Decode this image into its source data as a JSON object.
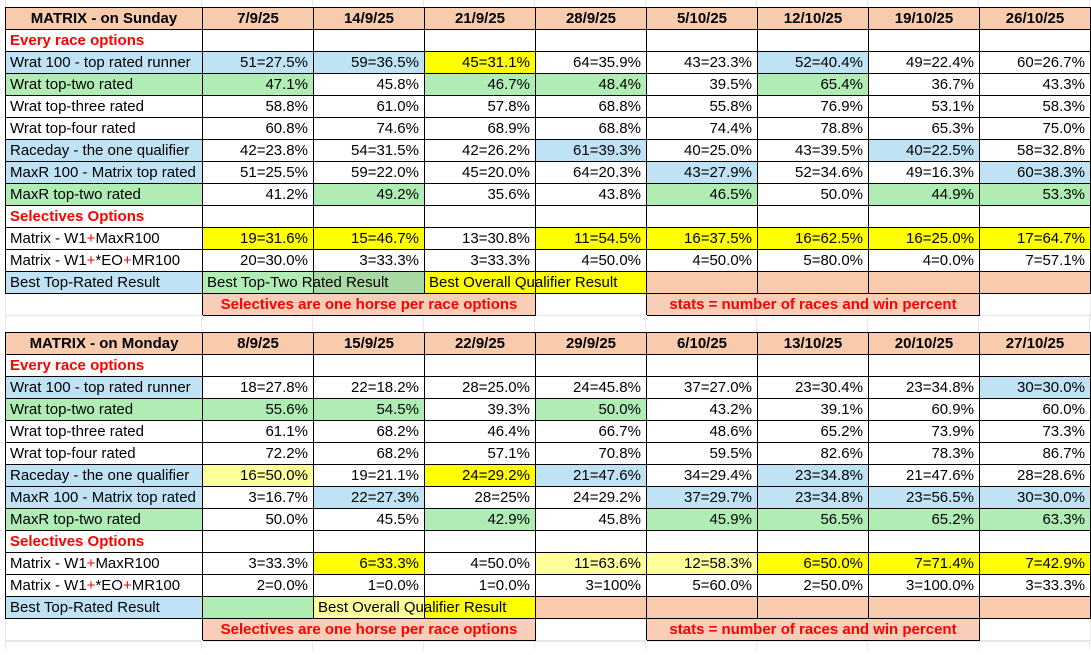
{
  "colors": {
    "peach": "#F8CBAD",
    "banner": "#F9CEB8",
    "blue": "#BFE3F4",
    "green": "#AFEDB5",
    "green_dark": "#A9D9A3",
    "yellow": "#FFFF00",
    "pale_yellow": "#FFFF9C",
    "white": "#FFFFFF",
    "red": "#FF0000",
    "grid": "#E8E8E8"
  },
  "tables": [
    {
      "name": "sunday-results-table",
      "title": "MATRIX - on Sunday",
      "dates": [
        "7/9/25",
        "14/9/25",
        "21/9/25",
        "28/9/25",
        "5/10/25",
        "12/10/25",
        "19/10/25",
        "26/10/25"
      ],
      "rows": [
        {
          "t": "section",
          "label": "Every race options"
        },
        {
          "t": "row",
          "label": "Wrat 100 - top rated runner",
          "lf": "blue",
          "cells": [
            [
              "51=27.5%",
              "blue"
            ],
            [
              "59=36.5%",
              "blue"
            ],
            [
              "45=31.1%",
              "yellow"
            ],
            [
              "64=35.9%",
              "white"
            ],
            [
              "43=23.3%",
              "white"
            ],
            [
              "52=40.4%",
              "blue"
            ],
            [
              "49=22.4%",
              "white"
            ],
            [
              "60=26.7%",
              "white"
            ]
          ]
        },
        {
          "t": "row",
          "label": "Wrat top-two rated",
          "lf": "green",
          "cells": [
            [
              "47.1%",
              "green"
            ],
            [
              "45.8%",
              "white"
            ],
            [
              "46.7%",
              "green"
            ],
            [
              "48.4%",
              "green"
            ],
            [
              "39.5%",
              "white"
            ],
            [
              "65.4%",
              "green"
            ],
            [
              "36.7%",
              "white"
            ],
            [
              "43.3%",
              "white"
            ]
          ]
        },
        {
          "t": "row",
          "label": "Wrat top-three rated",
          "lf": "white",
          "cells": [
            [
              "58.8%",
              "white"
            ],
            [
              "61.0%",
              "white"
            ],
            [
              "57.8%",
              "white"
            ],
            [
              "68.8%",
              "white"
            ],
            [
              "55.8%",
              "white"
            ],
            [
              "76.9%",
              "white"
            ],
            [
              "53.1%",
              "white"
            ],
            [
              "58.3%",
              "white"
            ]
          ]
        },
        {
          "t": "row",
          "label": "Wrat top-four rated",
          "lf": "white",
          "cells": [
            [
              "60.8%",
              "white"
            ],
            [
              "74.6%",
              "white"
            ],
            [
              "68.9%",
              "white"
            ],
            [
              "68.8%",
              "white"
            ],
            [
              "74.4%",
              "white"
            ],
            [
              "78.8%",
              "white"
            ],
            [
              "65.3%",
              "white"
            ],
            [
              "75.0%",
              "white"
            ]
          ]
        },
        {
          "t": "row",
          "label": "Raceday - the one qualifier",
          "lf": "blue",
          "cells": [
            [
              "42=23.8%",
              "white"
            ],
            [
              "54=31.5%",
              "white"
            ],
            [
              "42=26.2%",
              "white"
            ],
            [
              "61=39.3%",
              "blue"
            ],
            [
              "40=25.0%",
              "white"
            ],
            [
              "43=39.5%",
              "white"
            ],
            [
              "40=22.5%",
              "blue"
            ],
            [
              "58=32.8%",
              "white"
            ]
          ]
        },
        {
          "t": "row",
          "label": "MaxR 100 - Matrix top rated",
          "lf": "blue",
          "cells": [
            [
              "51=25.5%",
              "white"
            ],
            [
              "59=22.0%",
              "white"
            ],
            [
              "45=20.0%",
              "white"
            ],
            [
              "64=20.3%",
              "white"
            ],
            [
              "43=27.9%",
              "blue"
            ],
            [
              "52=34.6%",
              "white"
            ],
            [
              "49=16.3%",
              "white"
            ],
            [
              "60=38.3%",
              "blue"
            ]
          ]
        },
        {
          "t": "row",
          "label": "MaxR top-two rated",
          "lf": "green",
          "cells": [
            [
              "41.2%",
              "white"
            ],
            [
              "49.2%",
              "green"
            ],
            [
              "35.6%",
              "white"
            ],
            [
              "43.8%",
              "white"
            ],
            [
              "46.5%",
              "green"
            ],
            [
              "50.0%",
              "white"
            ],
            [
              "44.9%",
              "green"
            ],
            [
              "53.3%",
              "green"
            ]
          ]
        },
        {
          "t": "section",
          "label": "Selectives Options"
        },
        {
          "t": "row",
          "parts": [
            [
              "Matrix - W1",
              "black"
            ],
            [
              "+",
              "red"
            ],
            [
              "MaxR100",
              "black"
            ]
          ],
          "lf": "white",
          "cells": [
            [
              "19=31.6%",
              "yellow"
            ],
            [
              "15=46.7%",
              "yellow"
            ],
            [
              "13=30.8%",
              "white"
            ],
            [
              "11=54.5%",
              "yellow"
            ],
            [
              "16=37.5%",
              "yellow"
            ],
            [
              "16=62.5%",
              "yellow"
            ],
            [
              "16=25.0%",
              "yellow"
            ],
            [
              "17=64.7%",
              "yellow"
            ]
          ]
        },
        {
          "t": "row",
          "parts": [
            [
              "Matrix - W1",
              "black"
            ],
            [
              "+",
              "red"
            ],
            [
              "*EO",
              "black"
            ],
            [
              "+",
              "red"
            ],
            [
              "MR100",
              "black"
            ]
          ],
          "lf": "white",
          "cells": [
            [
              "20=30.0%",
              "white"
            ],
            [
              "3=33.3%",
              "white"
            ],
            [
              "3=33.3%",
              "white"
            ],
            [
              "4=50.0%",
              "white"
            ],
            [
              "4=50.0%",
              "white"
            ],
            [
              "5=80.0%",
              "white"
            ],
            [
              "4=0.0%",
              "white"
            ],
            [
              "7=57.1%",
              "white"
            ]
          ]
        },
        {
          "t": "result",
          "label": "Best Top-Rated Result",
          "lf": "blue",
          "cells": [
            [
              "Best Top-Two Rated Result",
              "green"
            ],
            [
              "",
              "green_dark"
            ],
            [
              "Best Overall Qualifier Result",
              "yellow"
            ],
            [
              "",
              "yellow"
            ],
            [
              "",
              "peach"
            ],
            [
              "",
              "peach"
            ],
            [
              "",
              "peach"
            ],
            [
              "",
              "peach"
            ]
          ]
        },
        {
          "t": "banner",
          "left": "Selectives are one horse per race options",
          "right": "stats = number of races and win percent"
        }
      ]
    },
    {
      "name": "monday-results-table",
      "title": "MATRIX - on Monday",
      "dates": [
        "8/9/25",
        "15/9/25",
        "22/9/25",
        "29/9/25",
        "6/10/25",
        "13/10/25",
        "20/10/25",
        "27/10/25"
      ],
      "rows": [
        {
          "t": "section",
          "label": "Every race options"
        },
        {
          "t": "row",
          "label": "Wrat 100 - top rated runner",
          "lf": "blue",
          "cells": [
            [
              "18=27.8%",
              "white"
            ],
            [
              "22=18.2%",
              "white"
            ],
            [
              "28=25.0%",
              "white"
            ],
            [
              "24=45.8%",
              "white"
            ],
            [
              "37=27.0%",
              "white"
            ],
            [
              "23=30.4%",
              "white"
            ],
            [
              "23=34.8%",
              "white"
            ],
            [
              "30=30.0%",
              "blue"
            ]
          ]
        },
        {
          "t": "row",
          "label": "Wrat top-two rated",
          "lf": "green",
          "cells": [
            [
              "55.6%",
              "green"
            ],
            [
              "54.5%",
              "green"
            ],
            [
              "39.3%",
              "white"
            ],
            [
              "50.0%",
              "green"
            ],
            [
              "43.2%",
              "white"
            ],
            [
              "39.1%",
              "white"
            ],
            [
              "60.9%",
              "white"
            ],
            [
              "60.0%",
              "white"
            ]
          ]
        },
        {
          "t": "row",
          "label": "Wrat top-three rated",
          "lf": "white",
          "cells": [
            [
              "61.1%",
              "white"
            ],
            [
              "68.2%",
              "white"
            ],
            [
              "46.4%",
              "white"
            ],
            [
              "66.7%",
              "white"
            ],
            [
              "48.6%",
              "white"
            ],
            [
              "65.2%",
              "white"
            ],
            [
              "73.9%",
              "white"
            ],
            [
              "73.3%",
              "white"
            ]
          ]
        },
        {
          "t": "row",
          "label": "Wrat top-four rated",
          "lf": "white",
          "cells": [
            [
              "72.2%",
              "white"
            ],
            [
              "68.2%",
              "white"
            ],
            [
              "57.1%",
              "white"
            ],
            [
              "70.8%",
              "white"
            ],
            [
              "59.5%",
              "white"
            ],
            [
              "82.6%",
              "white"
            ],
            [
              "78.3%",
              "white"
            ],
            [
              "86.7%",
              "white"
            ]
          ]
        },
        {
          "t": "row",
          "label": "Raceday - the one qualifier",
          "lf": "blue",
          "cells": [
            [
              "16=50.0%",
              "pale_yellow"
            ],
            [
              "19=21.1%",
              "white"
            ],
            [
              "24=29.2%",
              "yellow"
            ],
            [
              "21=47.6%",
              "blue"
            ],
            [
              "34=29.4%",
              "white"
            ],
            [
              "23=34.8%",
              "blue"
            ],
            [
              "21=47.6%",
              "white"
            ],
            [
              "28=28.6%",
              "white"
            ]
          ]
        },
        {
          "t": "row",
          "label": "MaxR 100 - Matrix top rated",
          "lf": "blue",
          "cells": [
            [
              "3=16.7%",
              "white"
            ],
            [
              "22=27.3%",
              "blue"
            ],
            [
              "28=25%",
              "white"
            ],
            [
              "24=29.2%",
              "white"
            ],
            [
              "37=29.7%",
              "blue"
            ],
            [
              "23=34.8%",
              "blue"
            ],
            [
              "23=56.5%",
              "blue"
            ],
            [
              "30=30.0%",
              "blue"
            ]
          ]
        },
        {
          "t": "row",
          "label": "MaxR top-two rated",
          "lf": "green",
          "cells": [
            [
              "50.0%",
              "white"
            ],
            [
              "45.5%",
              "white"
            ],
            [
              "42.9%",
              "green"
            ],
            [
              "45.8%",
              "white"
            ],
            [
              "45.9%",
              "green"
            ],
            [
              "56.5%",
              "green"
            ],
            [
              "65.2%",
              "green"
            ],
            [
              "63.3%",
              "green"
            ]
          ]
        },
        {
          "t": "section",
          "label": "Selectives Options"
        },
        {
          "t": "row",
          "parts": [
            [
              "Matrix - W1",
              "black"
            ],
            [
              "+",
              "red"
            ],
            [
              "MaxR100",
              "black"
            ]
          ],
          "lf": "white",
          "cells": [
            [
              "3=33.3%",
              "white"
            ],
            [
              "6=33.3%",
              "yellow"
            ],
            [
              "4=50.0%",
              "white"
            ],
            [
              "11=63.6%",
              "pale_yellow"
            ],
            [
              "12=58.3%",
              "pale_yellow"
            ],
            [
              "6=50.0%",
              "yellow"
            ],
            [
              "7=71.4%",
              "yellow"
            ],
            [
              "7=42.9%",
              "yellow"
            ]
          ]
        },
        {
          "t": "row",
          "parts": [
            [
              "Matrix - W1",
              "black"
            ],
            [
              "+",
              "red"
            ],
            [
              "*EO",
              "black"
            ],
            [
              "+",
              "red"
            ],
            [
              "MR100",
              "black"
            ]
          ],
          "lf": "white",
          "cells": [
            [
              "2=0.0%",
              "white"
            ],
            [
              "1=0.0%",
              "white"
            ],
            [
              "1=0.0%",
              "white"
            ],
            [
              "3=100%",
              "white"
            ],
            [
              "5=60.0%",
              "white"
            ],
            [
              "2=50.0%",
              "white"
            ],
            [
              "3=100.0%",
              "white"
            ],
            [
              "3=33.3%",
              "white"
            ]
          ]
        },
        {
          "t": "result",
          "label": "Best Top-Rated Result",
          "lf": "blue",
          "cells": [
            [
              "",
              "green"
            ],
            [
              "Best Overall Qualifier Result",
              "pale_yellow"
            ],
            [
              "",
              "yellow"
            ],
            [
              "",
              "peach"
            ],
            [
              "",
              "peach"
            ],
            [
              "",
              "peach"
            ],
            [
              "",
              "peach"
            ],
            [
              "",
              "peach"
            ]
          ]
        },
        {
          "t": "banner",
          "left": "Selectives are one horse per race options",
          "right": "stats = number of races and win percent"
        }
      ]
    }
  ]
}
